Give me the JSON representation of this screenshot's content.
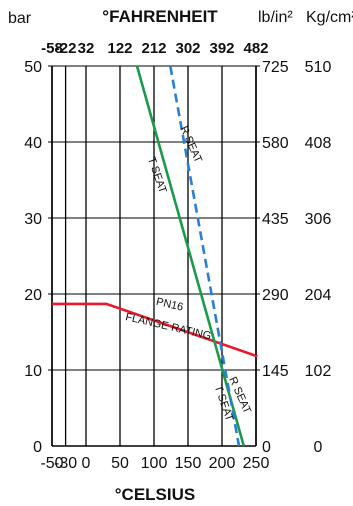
{
  "chart_data": {
    "type": "line",
    "units": {
      "left": "bar",
      "top": "°FAHRENHEIT",
      "psi": "lb/in²",
      "kgcm2": "Kg/cm²",
      "bottom": "°CELSIUS"
    },
    "x_celsius": {
      "ticks": [
        -50,
        -30,
        0,
        50,
        100,
        150,
        200,
        250
      ],
      "tick_labels": [
        "-50",
        "-30",
        "0",
        "50",
        "100",
        "150",
        "200",
        "250"
      ],
      "lim": [
        -50,
        250
      ]
    },
    "x_fahrenheit": {
      "ticks": [
        -58,
        -22,
        32,
        122,
        212,
        302,
        392,
        482
      ],
      "tick_labels": [
        "-58",
        "-22",
        "32",
        "122",
        "212",
        "302",
        "392",
        "482"
      ]
    },
    "y_bar": {
      "ticks": [
        0,
        10,
        20,
        30,
        40,
        50
      ],
      "tick_labels": [
        "0",
        "10",
        "20",
        "30",
        "40",
        "50"
      ],
      "lim": [
        0,
        50
      ]
    },
    "y_psi": {
      "ticks": [
        0,
        10,
        20,
        30,
        40,
        50
      ],
      "tick_labels": [
        "0",
        "145",
        "290",
        "435",
        "580",
        "725"
      ]
    },
    "y_kgcm2": {
      "ticks": [
        0,
        10,
        20,
        30,
        40,
        50
      ],
      "tick_labels": [
        "0",
        "102",
        "204",
        "306",
        "408",
        "510"
      ]
    },
    "grid": true,
    "series": [
      {
        "name": "PN16 FLANGE RATING",
        "color": "#e8192c",
        "style": "solid",
        "x": [
          -50,
          30,
          252
        ],
        "y": [
          18.7,
          18.7,
          11.8
        ]
      },
      {
        "name": "T SEAT",
        "color": "#1a9a4a",
        "style": "solid",
        "x": [
          75,
          232
        ],
        "y": [
          50,
          0
        ]
      },
      {
        "name": "R SEAT",
        "color": "#2a7fd4",
        "style": "dashed",
        "x": [
          124,
          225
        ],
        "y": [
          50,
          0
        ]
      }
    ],
    "annotations": [
      {
        "text": "PN16",
        "x": 122,
        "y": 18.2,
        "angle": 13
      },
      {
        "text": "FLANGE RATING",
        "x": 120,
        "y": 15.3,
        "angle": 13
      },
      {
        "text": "T SEAT",
        "x": 100,
        "y": 35.5,
        "angle": 71
      },
      {
        "text": "R SEAT",
        "x": 150,
        "y": 39.5,
        "angle": 66
      },
      {
        "text": "T SEAT",
        "x": 198,
        "y": 5.5,
        "angle": 71
      },
      {
        "text": "R SEAT",
        "x": 222,
        "y": 6.5,
        "angle": 66
      }
    ]
  }
}
